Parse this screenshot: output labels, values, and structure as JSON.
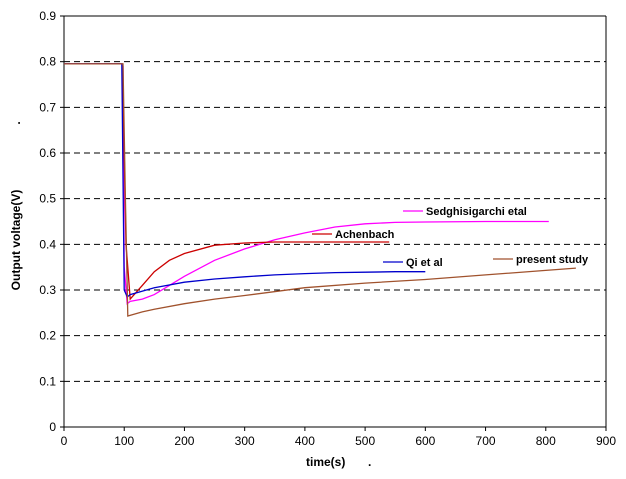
{
  "chart_data": {
    "type": "line",
    "xlabel": "time(s)",
    "xlabel_suffix": ".",
    "ylabel": "Output voltage(V)",
    "ylabel_mark": ".",
    "xlim": [
      0,
      900
    ],
    "ylim": [
      0,
      0.9
    ],
    "x_ticks": [
      "0",
      "100",
      "200",
      "300",
      "400",
      "500",
      "600",
      "700",
      "800",
      "900"
    ],
    "y_ticks": [
      "0",
      "0.1",
      "0.2",
      "0.3",
      "0.4",
      "0.5",
      "0.6",
      "0.7",
      "0.8",
      "0.9"
    ],
    "grid": "horizontal dashed",
    "legend": "inline annotations",
    "series": [
      {
        "name": "Sedghisigarchi etal",
        "color": "#ff00ff",
        "x": [
          0,
          95,
          98,
          100,
          105,
          110,
          130,
          150,
          175,
          200,
          250,
          300,
          350,
          400,
          450,
          500,
          550,
          600,
          700,
          805
        ],
        "y": [
          0.795,
          0.795,
          0.79,
          0.35,
          0.27,
          0.275,
          0.28,
          0.29,
          0.31,
          0.33,
          0.365,
          0.39,
          0.41,
          0.425,
          0.438,
          0.445,
          0.448,
          0.449,
          0.45,
          0.45
        ]
      },
      {
        "name": "Achenbach",
        "color": "#cc0000",
        "x": [
          0,
          97,
          100,
          103,
          110,
          130,
          150,
          175,
          200,
          250,
          300,
          350,
          400,
          450,
          500,
          540
        ],
        "y": [
          0.795,
          0.795,
          0.6,
          0.4,
          0.28,
          0.31,
          0.34,
          0.365,
          0.38,
          0.398,
          0.403,
          0.405,
          0.405,
          0.405,
          0.405,
          0.405
        ]
      },
      {
        "name": "Qi et al",
        "color": "#0000cc",
        "x": [
          0,
          96,
          100,
          105,
          110,
          150,
          200,
          250,
          300,
          350,
          400,
          450,
          500,
          550,
          600
        ],
        "y": [
          0.795,
          0.795,
          0.3,
          0.285,
          0.29,
          0.305,
          0.317,
          0.324,
          0.329,
          0.333,
          0.336,
          0.338,
          0.339,
          0.34,
          0.34
        ]
      },
      {
        "name": "present study",
        "color": "#a0522d",
        "x": [
          0,
          98,
          102,
          106,
          130,
          150,
          200,
          250,
          300,
          400,
          500,
          600,
          700,
          800,
          850
        ],
        "y": [
          0.795,
          0.795,
          0.5,
          0.243,
          0.252,
          0.258,
          0.27,
          0.28,
          0.288,
          0.305,
          0.315,
          0.323,
          0.333,
          0.343,
          0.348
        ]
      }
    ],
    "annotations": [
      {
        "text": "Sedghisigarchi etal",
        "series": "Sedghisigarchi etal"
      },
      {
        "text": "Achenbach",
        "series": "Achenbach"
      },
      {
        "text": "Qi et al",
        "series": "Qi et al"
      },
      {
        "text": "present study",
        "series": "present study"
      }
    ]
  }
}
